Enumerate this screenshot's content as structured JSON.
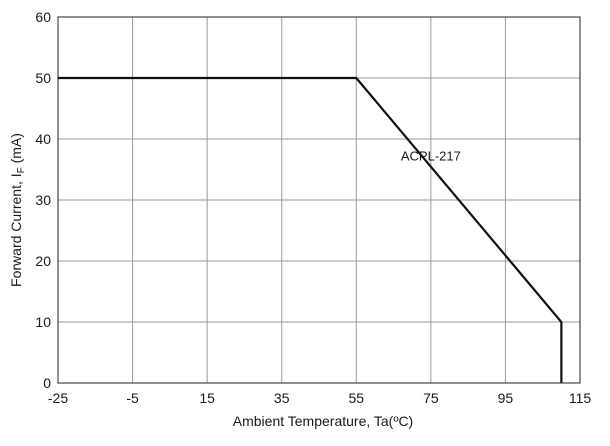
{
  "chart_data": {
    "type": "line",
    "title": "",
    "xlabel": "Ambient Temperature, Ta(ºC)",
    "ylabel_main": "Forward Current, I",
    "ylabel_sub": "F",
    "ylabel_unit": " (mA)",
    "xlim": [
      -25,
      115
    ],
    "ylim": [
      0,
      60
    ],
    "x_ticks": [
      -25,
      -5,
      15,
      35,
      55,
      75,
      95,
      115
    ],
    "y_ticks": [
      0,
      10,
      20,
      30,
      40,
      50,
      60
    ],
    "grid": true,
    "series": [
      {
        "name": "ACPL-217",
        "x": [
          -25,
          55,
          110,
          110
        ],
        "y": [
          50,
          50,
          10,
          0
        ]
      }
    ],
    "annotations": [
      {
        "text": "ACPL-217",
        "x": 75,
        "y": 36.5
      }
    ],
    "colors": {
      "line": "#111111",
      "grid": "#9a9a9a",
      "axis": "#222222"
    }
  }
}
